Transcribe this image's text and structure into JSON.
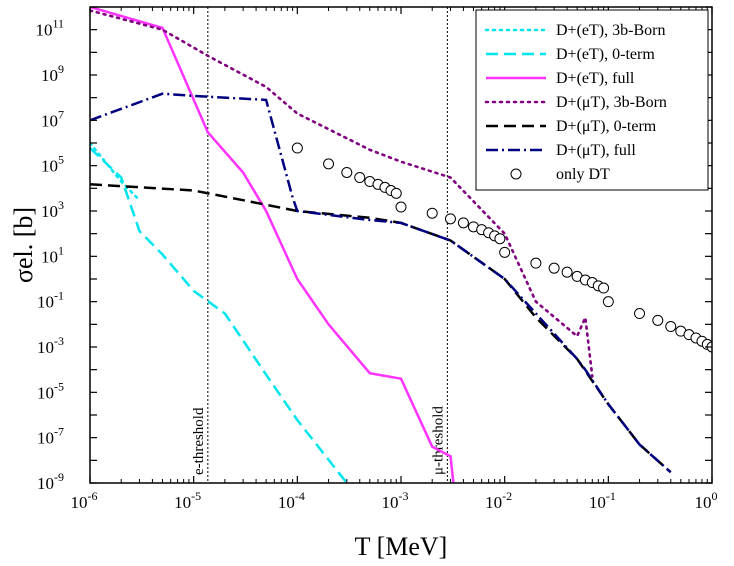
{
  "chart_data": {
    "type": "line",
    "xlabel": "T [MeV]",
    "ylabel": "σel. [b]",
    "xscale": "log",
    "yscale": "log",
    "xlim": [
      1e-06,
      1
    ],
    "ylim": [
      1e-09,
      1000000000000.0
    ],
    "x_ticks": [
      {
        "mant": "10",
        "exp": "-6"
      },
      {
        "mant": "10",
        "exp": "-5"
      },
      {
        "mant": "10",
        "exp": "-4"
      },
      {
        "mant": "10",
        "exp": "-3"
      },
      {
        "mant": "10",
        "exp": "-2"
      },
      {
        "mant": "10",
        "exp": "-1"
      },
      {
        "mant": "10",
        "exp": "0"
      }
    ],
    "y_ticks": [
      {
        "mant": "10",
        "exp": "-9"
      },
      {
        "mant": "10",
        "exp": "-7"
      },
      {
        "mant": "10",
        "exp": "-5"
      },
      {
        "mant": "10",
        "exp": "-3"
      },
      {
        "mant": "10",
        "exp": "-1"
      },
      {
        "mant": "10",
        "exp": "1"
      },
      {
        "mant": "10",
        "exp": "3"
      },
      {
        "mant": "10",
        "exp": "5"
      },
      {
        "mant": "10",
        "exp": "7"
      },
      {
        "mant": "10",
        "exp": "9"
      },
      {
        "mant": "10",
        "exp": "11"
      }
    ],
    "legend_position": "top-right",
    "vlines": [
      {
        "x": 1.37e-05,
        "label": "e-threshold"
      },
      {
        "x": 0.0028,
        "label": "μ-threshold"
      }
    ],
    "series": [
      {
        "name": "D+(eT), 3b-Born",
        "color": "#00e5ee",
        "style": "dot",
        "x": [
          1e-06,
          1.5e-06,
          2e-06,
          3e-06
        ],
        "y": [
          1000000.0,
          100000.0,
          20000.0,
          3000.0
        ]
      },
      {
        "name": "D+(eT), 0-term",
        "color": "#00e5ee",
        "style": "dash",
        "x": [
          1e-06,
          2e-06,
          3e-06,
          5e-06,
          1e-05,
          2e-05,
          5e-05,
          0.0001,
          0.0003
        ],
        "y": [
          600000.0,
          30000.0,
          130.0,
          12.0,
          0.3,
          0.03,
          6e-05,
          6e-07,
          1e-09
        ]
      },
      {
        "name": "D+(eT), full",
        "color": "#ff33ff",
        "style": "solid",
        "x": [
          1e-06,
          5e-06,
          1.37e-05,
          3e-05,
          5e-05,
          0.0001,
          0.0002,
          0.0005,
          0.001,
          0.002,
          0.003,
          0.0032
        ],
        "y": [
          1000000000000.0,
          120000000000.0,
          3000000.0,
          50000.0,
          1000.0,
          1.0,
          0.01,
          7e-05,
          4e-05,
          4e-08,
          1.5e-08,
          1e-09
        ]
      },
      {
        "name": "D+(μT), 3b-Born",
        "color": "#800080",
        "style": "dot",
        "x": [
          1e-06,
          5e-06,
          1.37e-05,
          5e-05,
          0.0001,
          0.0005,
          0.001,
          0.003,
          0.01,
          0.02,
          0.05,
          0.06,
          0.07
        ],
        "y": [
          700000000000.0,
          100000000000.0,
          7000000000.0,
          300000000.0,
          20000000.0,
          500000.0,
          150000.0,
          30000.0,
          100.0,
          0.1,
          0.003,
          0.02,
          5e-05
        ]
      },
      {
        "name": "D+(μT), 0-term",
        "color": "#000000",
        "style": "dash",
        "x": [
          1e-06,
          1e-05,
          3e-05,
          0.0001,
          0.0005,
          0.001,
          0.003,
          0.01,
          0.02,
          0.05,
          0.1,
          0.2,
          0.4
        ],
        "y": [
          15000.0,
          8000.0,
          3000.0,
          1000.0,
          500.0,
          300.0,
          50.0,
          1.0,
          0.02,
          0.0003,
          3e-06,
          5e-08,
          3e-09
        ]
      },
      {
        "name": "D+(μT), full",
        "color": "#000080",
        "style": "dashdot",
        "x": [
          1e-06,
          5e-06,
          1e-05,
          5e-05,
          9e-05,
          0.0001,
          0.0005,
          0.001,
          0.003,
          0.01,
          0.02,
          0.05,
          0.06,
          0.1,
          0.2,
          0.4
        ],
        "y": [
          10000000.0,
          150000000.0,
          120000000.0,
          80000000.0,
          4000.0,
          1000.0,
          400.0,
          300.0,
          50.0,
          1.0,
          0.03,
          0.0003,
          0.0001,
          3e-06,
          5e-08,
          3e-09
        ]
      },
      {
        "name": "only DT",
        "color": "#000000",
        "style": "marker-circle",
        "x": [
          0.0001,
          0.0002,
          0.0003,
          0.0004,
          0.0005,
          0.0006,
          0.0007,
          0.0008,
          0.0009,
          0.001,
          0.002,
          0.003,
          0.004,
          0.005,
          0.006,
          0.007,
          0.008,
          0.009,
          0.01,
          0.02,
          0.03,
          0.04,
          0.05,
          0.06,
          0.07,
          0.08,
          0.09,
          0.1,
          0.2,
          0.3,
          0.4,
          0.5,
          0.6,
          0.7,
          0.8,
          0.9,
          1
        ],
        "y": [
          600000.0,
          120000.0,
          50000.0,
          30000.0,
          20000.0,
          15000.0,
          11000.0,
          8000.0,
          6000.0,
          1500.0,
          800.0,
          450.0,
          300.0,
          200.0,
          150.0,
          110.0,
          80.0,
          60.0,
          15.0,
          5.0,
          3.0,
          2.0,
          1.3,
          0.9,
          0.7,
          0.5,
          0.4,
          0.1,
          0.03,
          0.015,
          0.008,
          0.005,
          0.0035,
          0.0025,
          0.0018,
          0.0013,
          0.001
        ]
      }
    ]
  }
}
